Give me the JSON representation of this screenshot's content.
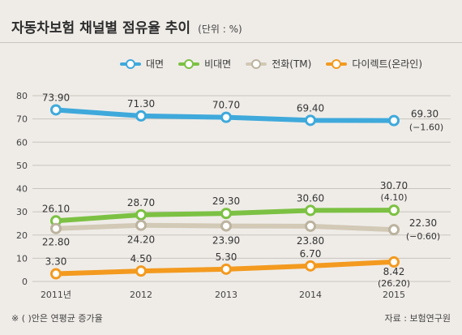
{
  "title": "자동차보험 채널별 점유율 추이",
  "unit_note": "(단위 : %)",
  "footnote_left": "※ (  )안은 연평균 증가율",
  "footnote_right": "자료 : 보험연구원",
  "colors": {
    "background": "#efece8",
    "대면": "#3fa9db",
    "비대면": "#7cc143",
    "전화(TM)": "#d2c9b6",
    "다이렉트(온라인)": "#f39a1f"
  },
  "chart_data": {
    "type": "line",
    "categories": [
      "2011년",
      "2012",
      "2013",
      "2014",
      "2015"
    ],
    "ylim": [
      0,
      80
    ],
    "yticks": [
      0,
      10,
      20,
      30,
      40,
      50,
      60,
      70,
      80
    ],
    "grid": true,
    "legend_position": "top",
    "series": [
      {
        "name": "대면",
        "values": [
          73.9,
          71.3,
          70.7,
          69.4,
          69.3
        ],
        "labels": [
          "73.90",
          "71.30",
          "70.70",
          "69.40",
          "69.30"
        ],
        "growth": "(−1.60)"
      },
      {
        "name": "비대면",
        "values": [
          26.1,
          28.7,
          29.3,
          30.6,
          30.7
        ],
        "labels": [
          "26.10",
          "28.70",
          "29.30",
          "30.60",
          "30.70"
        ],
        "growth": "(4.10)"
      },
      {
        "name": "전화(TM)",
        "values": [
          22.8,
          24.2,
          23.9,
          23.8,
          22.3
        ],
        "labels": [
          "22.80",
          "24.20",
          "23.90",
          "23.80",
          "22.30"
        ],
        "growth": "(−0.60)"
      },
      {
        "name": "다이렉트(온라인)",
        "values": [
          3.3,
          4.5,
          5.3,
          6.7,
          8.42
        ],
        "labels": [
          "3.30",
          "4.50",
          "5.30",
          "6.70",
          "8.42"
        ],
        "growth": "(26.20)"
      }
    ]
  }
}
